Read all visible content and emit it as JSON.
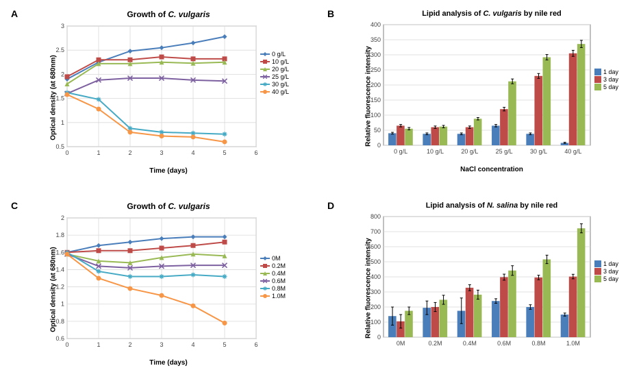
{
  "panels": {
    "A": {
      "label": "A",
      "title_prefix": "Growth of ",
      "title_italic": "C. vulgaris",
      "title_suffix": "",
      "type": "line",
      "xlabel": "Time (days)",
      "ylabel": "Optical density (at 680nm)",
      "title_fontsize": 12,
      "label_fontsize": 10,
      "tick_fontsize": 9,
      "xlim": [
        0,
        6
      ],
      "ylim": [
        0.5,
        3
      ],
      "xticks": [
        0,
        1,
        2,
        3,
        4,
        5,
        6
      ],
      "yticks": [
        0.5,
        1,
        1.5,
        2,
        2.5,
        3
      ],
      "plot_bg": "#ffffff",
      "grid_color": "#d9d9d9",
      "border_color": "#808080",
      "series": [
        {
          "name": "0 g/L",
          "color": "#4a7ebb",
          "marker": "diamond",
          "x": [
            0,
            1,
            2,
            3,
            4,
            5
          ],
          "y": [
            1.9,
            2.25,
            2.48,
            2.55,
            2.65,
            2.78
          ]
        },
        {
          "name": "10 g/L",
          "color": "#be4b48",
          "marker": "square",
          "x": [
            0,
            1,
            2,
            3,
            4,
            5
          ],
          "y": [
            1.95,
            2.3,
            2.3,
            2.36,
            2.32,
            2.32
          ]
        },
        {
          "name": "20 g/L",
          "color": "#98b954",
          "marker": "triangle",
          "x": [
            0,
            1,
            2,
            3,
            4,
            5
          ],
          "y": [
            1.8,
            2.22,
            2.22,
            2.25,
            2.23,
            2.25
          ]
        },
        {
          "name": "25 g/L",
          "color": "#7d60a0",
          "marker": "x",
          "x": [
            0,
            1,
            2,
            3,
            4,
            5
          ],
          "y": [
            1.6,
            1.88,
            1.92,
            1.92,
            1.88,
            1.86
          ]
        },
        {
          "name": "30 g/L",
          "color": "#46aac5",
          "marker": "star",
          "x": [
            0,
            1,
            2,
            3,
            4,
            5
          ],
          "y": [
            1.62,
            1.48,
            0.88,
            0.8,
            0.78,
            0.76
          ]
        },
        {
          "name": "40 g/L",
          "color": "#f79646",
          "marker": "circle",
          "x": [
            0,
            1,
            2,
            3,
            4,
            5
          ],
          "y": [
            1.58,
            1.28,
            0.8,
            0.72,
            0.7,
            0.6
          ]
        }
      ]
    },
    "B": {
      "label": "B",
      "title_prefix": "Lipid analysis of ",
      "title_italic": "C. vulgaris",
      "title_suffix": " by nile red",
      "type": "bar",
      "xlabel": "NaCl concentration",
      "ylabel": "Relative fluorescence intensity",
      "title_fontsize": 11,
      "label_fontsize": 10,
      "tick_fontsize": 9,
      "ylim": [
        0,
        400
      ],
      "yticks": [
        0,
        50,
        100,
        150,
        200,
        250,
        300,
        350,
        400
      ],
      "plot_bg": "#ffffff",
      "grid_color": "#d9d9d9",
      "border_color": "#808080",
      "categories": [
        "0 g/L",
        "10 g/L",
        "20 g/L",
        "25 g/L",
        "30 g/L",
        "40 g/L"
      ],
      "bar_group_width": 0.72,
      "series": [
        {
          "name": "1 day",
          "color": "#4a7ebb",
          "values": [
            40,
            38,
            38,
            65,
            38,
            8
          ],
          "err": [
            3,
            3,
            3,
            4,
            3,
            2
          ]
        },
        {
          "name": "3 day",
          "color": "#be4b48",
          "values": [
            65,
            60,
            60,
            120,
            230,
            305
          ],
          "err": [
            4,
            4,
            4,
            6,
            8,
            10
          ]
        },
        {
          "name": "5 day",
          "color": "#98b954",
          "values": [
            55,
            62,
            88,
            212,
            292,
            336
          ],
          "err": [
            4,
            4,
            4,
            8,
            9,
            12
          ]
        }
      ]
    },
    "C": {
      "label": "C",
      "title_prefix": "Growth of ",
      "title_italic": "C. vulgaris",
      "title_suffix": "",
      "type": "line",
      "xlabel": "Time (days)",
      "ylabel": "Optical density (at 680nm)",
      "title_fontsize": 12,
      "label_fontsize": 10,
      "tick_fontsize": 9,
      "xlim": [
        0,
        6
      ],
      "ylim": [
        0.6,
        2
      ],
      "xticks": [
        0,
        1,
        2,
        3,
        4,
        5,
        6
      ],
      "yticks": [
        0.6,
        0.8,
        1,
        1.2,
        1.4,
        1.6,
        1.8,
        2
      ],
      "plot_bg": "#ffffff",
      "grid_color": "#d9d9d9",
      "border_color": "#808080",
      "series": [
        {
          "name": "0M",
          "color": "#4a7ebb",
          "marker": "diamond",
          "x": [
            0,
            1,
            2,
            3,
            4,
            5
          ],
          "y": [
            1.6,
            1.68,
            1.72,
            1.76,
            1.78,
            1.78
          ]
        },
        {
          "name": "0.2M",
          "color": "#be4b48",
          "marker": "square",
          "x": [
            0,
            1,
            2,
            3,
            4,
            5
          ],
          "y": [
            1.6,
            1.62,
            1.62,
            1.65,
            1.68,
            1.72
          ]
        },
        {
          "name": "0.4M",
          "color": "#98b954",
          "marker": "triangle",
          "x": [
            0,
            1,
            2,
            3,
            4,
            5
          ],
          "y": [
            1.58,
            1.5,
            1.48,
            1.54,
            1.58,
            1.56
          ]
        },
        {
          "name": "0.6M",
          "color": "#7d60a0",
          "marker": "x",
          "x": [
            0,
            1,
            2,
            3,
            4,
            5
          ],
          "y": [
            1.58,
            1.44,
            1.42,
            1.44,
            1.45,
            1.45
          ]
        },
        {
          "name": "0.8M",
          "color": "#46aac5",
          "marker": "star",
          "x": [
            0,
            1,
            2,
            3,
            4,
            5
          ],
          "y": [
            1.6,
            1.38,
            1.32,
            1.32,
            1.34,
            1.32
          ]
        },
        {
          "name": "1.0M",
          "color": "#f79646",
          "marker": "circle",
          "x": [
            0,
            1,
            2,
            3,
            4,
            5
          ],
          "y": [
            1.58,
            1.3,
            1.18,
            1.1,
            0.98,
            0.78
          ]
        }
      ]
    },
    "D": {
      "label": "D",
      "title_prefix": "Lipid analysis of ",
      "title_italic": "N. salina",
      "title_suffix": " by nile red",
      "type": "bar",
      "xlabel": "",
      "ylabel": "Relative fluorescence intensity",
      "title_fontsize": 11,
      "label_fontsize": 10,
      "tick_fontsize": 9,
      "ylim": [
        0,
        800
      ],
      "yticks": [
        0,
        100,
        200,
        300,
        400,
        500,
        600,
        700,
        800
      ],
      "plot_bg": "#ffffff",
      "grid_color": "#d9d9d9",
      "border_color": "#808080",
      "categories": [
        "0M",
        "0.2M",
        "0.4M",
        "0.6M",
        "0.8M",
        "1.0M"
      ],
      "bar_group_width": 0.72,
      "series": [
        {
          "name": "1 day",
          "color": "#4a7ebb",
          "values": [
            140,
            195,
            175,
            240,
            200,
            150
          ],
          "err": [
            60,
            45,
            85,
            15,
            15,
            10
          ]
        },
        {
          "name": "3 day",
          "color": "#be4b48",
          "values": [
            105,
            200,
            328,
            398,
            396,
            402
          ],
          "err": [
            45,
            30,
            20,
            20,
            15,
            15
          ]
        },
        {
          "name": "5 day",
          "color": "#98b954",
          "values": [
            175,
            248,
            282,
            442,
            516,
            722
          ],
          "err": [
            25,
            30,
            30,
            32,
            28,
            30
          ]
        }
      ]
    }
  }
}
